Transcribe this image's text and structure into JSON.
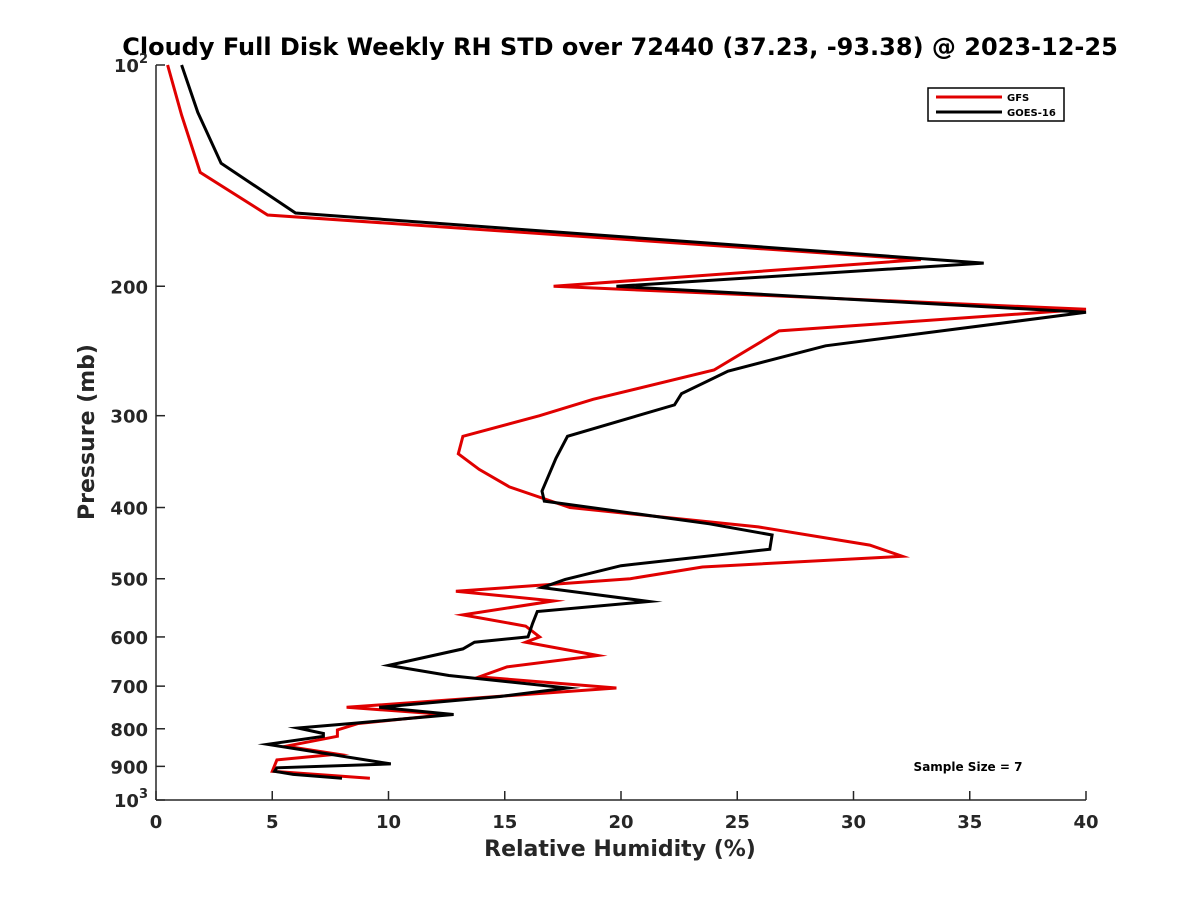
{
  "chart_data": {
    "type": "line",
    "title": "Cloudy Full Disk Weekly RH STD over 72440 (37.23, -93.38) @ 2023-12-25",
    "xlabel": "Relative Humidity (%)",
    "ylabel": "Pressure (mb)",
    "xlim": [
      0,
      40
    ],
    "ylim": [
      100,
      1000
    ],
    "y_scale": "log",
    "y_reversed": true,
    "grid": false,
    "legend_position": "top-right",
    "x_ticks": [
      "0",
      "5",
      "10",
      "15",
      "20",
      "25",
      "30",
      "35",
      "40"
    ],
    "y_ticks": [
      {
        "value": 100,
        "base": "10",
        "exp": "2"
      },
      {
        "value": 200,
        "label": "200"
      },
      {
        "value": 300,
        "label": "300"
      },
      {
        "value": 400,
        "label": "400"
      },
      {
        "value": 500,
        "label": "500"
      },
      {
        "value": 600,
        "label": "600"
      },
      {
        "value": 700,
        "label": "700"
      },
      {
        "value": 800,
        "label": "800"
      },
      {
        "value": 900,
        "label": "900"
      },
      {
        "value": 1000,
        "base": "10",
        "exp": "3"
      }
    ],
    "annotation": "Sample Size = 7",
    "series": [
      {
        "name": "GFS",
        "color": "#e00000",
        "points": [
          [
            0.5,
            100
          ],
          [
            1.1,
            117
          ],
          [
            1.9,
            140
          ],
          [
            4.8,
            160
          ],
          [
            32.9,
            184
          ],
          [
            17.1,
            200
          ],
          [
            40.0,
            215
          ],
          [
            26.8,
            230
          ],
          [
            24.0,
            260
          ],
          [
            18.8,
            285
          ],
          [
            16.5,
            300
          ],
          [
            13.2,
            320
          ],
          [
            13.0,
            338
          ],
          [
            13.9,
            355
          ],
          [
            15.2,
            375
          ],
          [
            17.8,
            400
          ],
          [
            25.9,
            425
          ],
          [
            30.7,
            450
          ],
          [
            32.1,
            466
          ],
          [
            23.5,
            482
          ],
          [
            20.4,
            500
          ],
          [
            12.9,
            520
          ],
          [
            17.1,
            536
          ],
          [
            13.2,
            560
          ],
          [
            15.9,
            580
          ],
          [
            16.5,
            600
          ],
          [
            15.9,
            610
          ],
          [
            19.0,
            636
          ],
          [
            15.1,
            659
          ],
          [
            13.9,
            680
          ],
          [
            19.8,
            704
          ],
          [
            8.2,
            748
          ],
          [
            12.5,
            765
          ],
          [
            8.7,
            787
          ],
          [
            7.8,
            803
          ],
          [
            7.8,
            819
          ],
          [
            5.6,
            845
          ],
          [
            7.8,
            866
          ],
          [
            5.2,
            882
          ],
          [
            5.0,
            914
          ],
          [
            9.2,
            934
          ]
        ]
      },
      {
        "name": "GOES-16",
        "color": "#000000",
        "points": [
          [
            1.1,
            100
          ],
          [
            1.8,
            116
          ],
          [
            2.8,
            136
          ],
          [
            6.0,
            159
          ],
          [
            35.6,
            186
          ],
          [
            19.8,
            200
          ],
          [
            40.0,
            217
          ],
          [
            28.8,
            241
          ],
          [
            24.6,
            261
          ],
          [
            22.6,
            280
          ],
          [
            22.3,
            290
          ],
          [
            17.7,
            320
          ],
          [
            17.2,
            343
          ],
          [
            16.6,
            380
          ],
          [
            16.7,
            392
          ],
          [
            23.8,
            421
          ],
          [
            26.5,
            436
          ],
          [
            26.4,
            456
          ],
          [
            20.0,
            480
          ],
          [
            17.6,
            501
          ],
          [
            16.6,
            514
          ],
          [
            21.2,
            537
          ],
          [
            16.4,
            554
          ],
          [
            16.2,
            575
          ],
          [
            16.0,
            600
          ],
          [
            13.7,
            610
          ],
          [
            13.2,
            623
          ],
          [
            10.0,
            656
          ],
          [
            12.6,
            677
          ],
          [
            17.7,
            704
          ],
          [
            14.8,
            723
          ],
          [
            9.6,
            748
          ],
          [
            12.8,
            765
          ],
          [
            8.4,
            787
          ],
          [
            6.1,
            798
          ],
          [
            7.2,
            812
          ],
          [
            7.2,
            819
          ],
          [
            4.8,
            840
          ],
          [
            10.1,
            893
          ],
          [
            5.2,
            904
          ],
          [
            5.1,
            914
          ],
          [
            5.9,
            923
          ],
          [
            8.0,
            934
          ]
        ]
      }
    ]
  }
}
